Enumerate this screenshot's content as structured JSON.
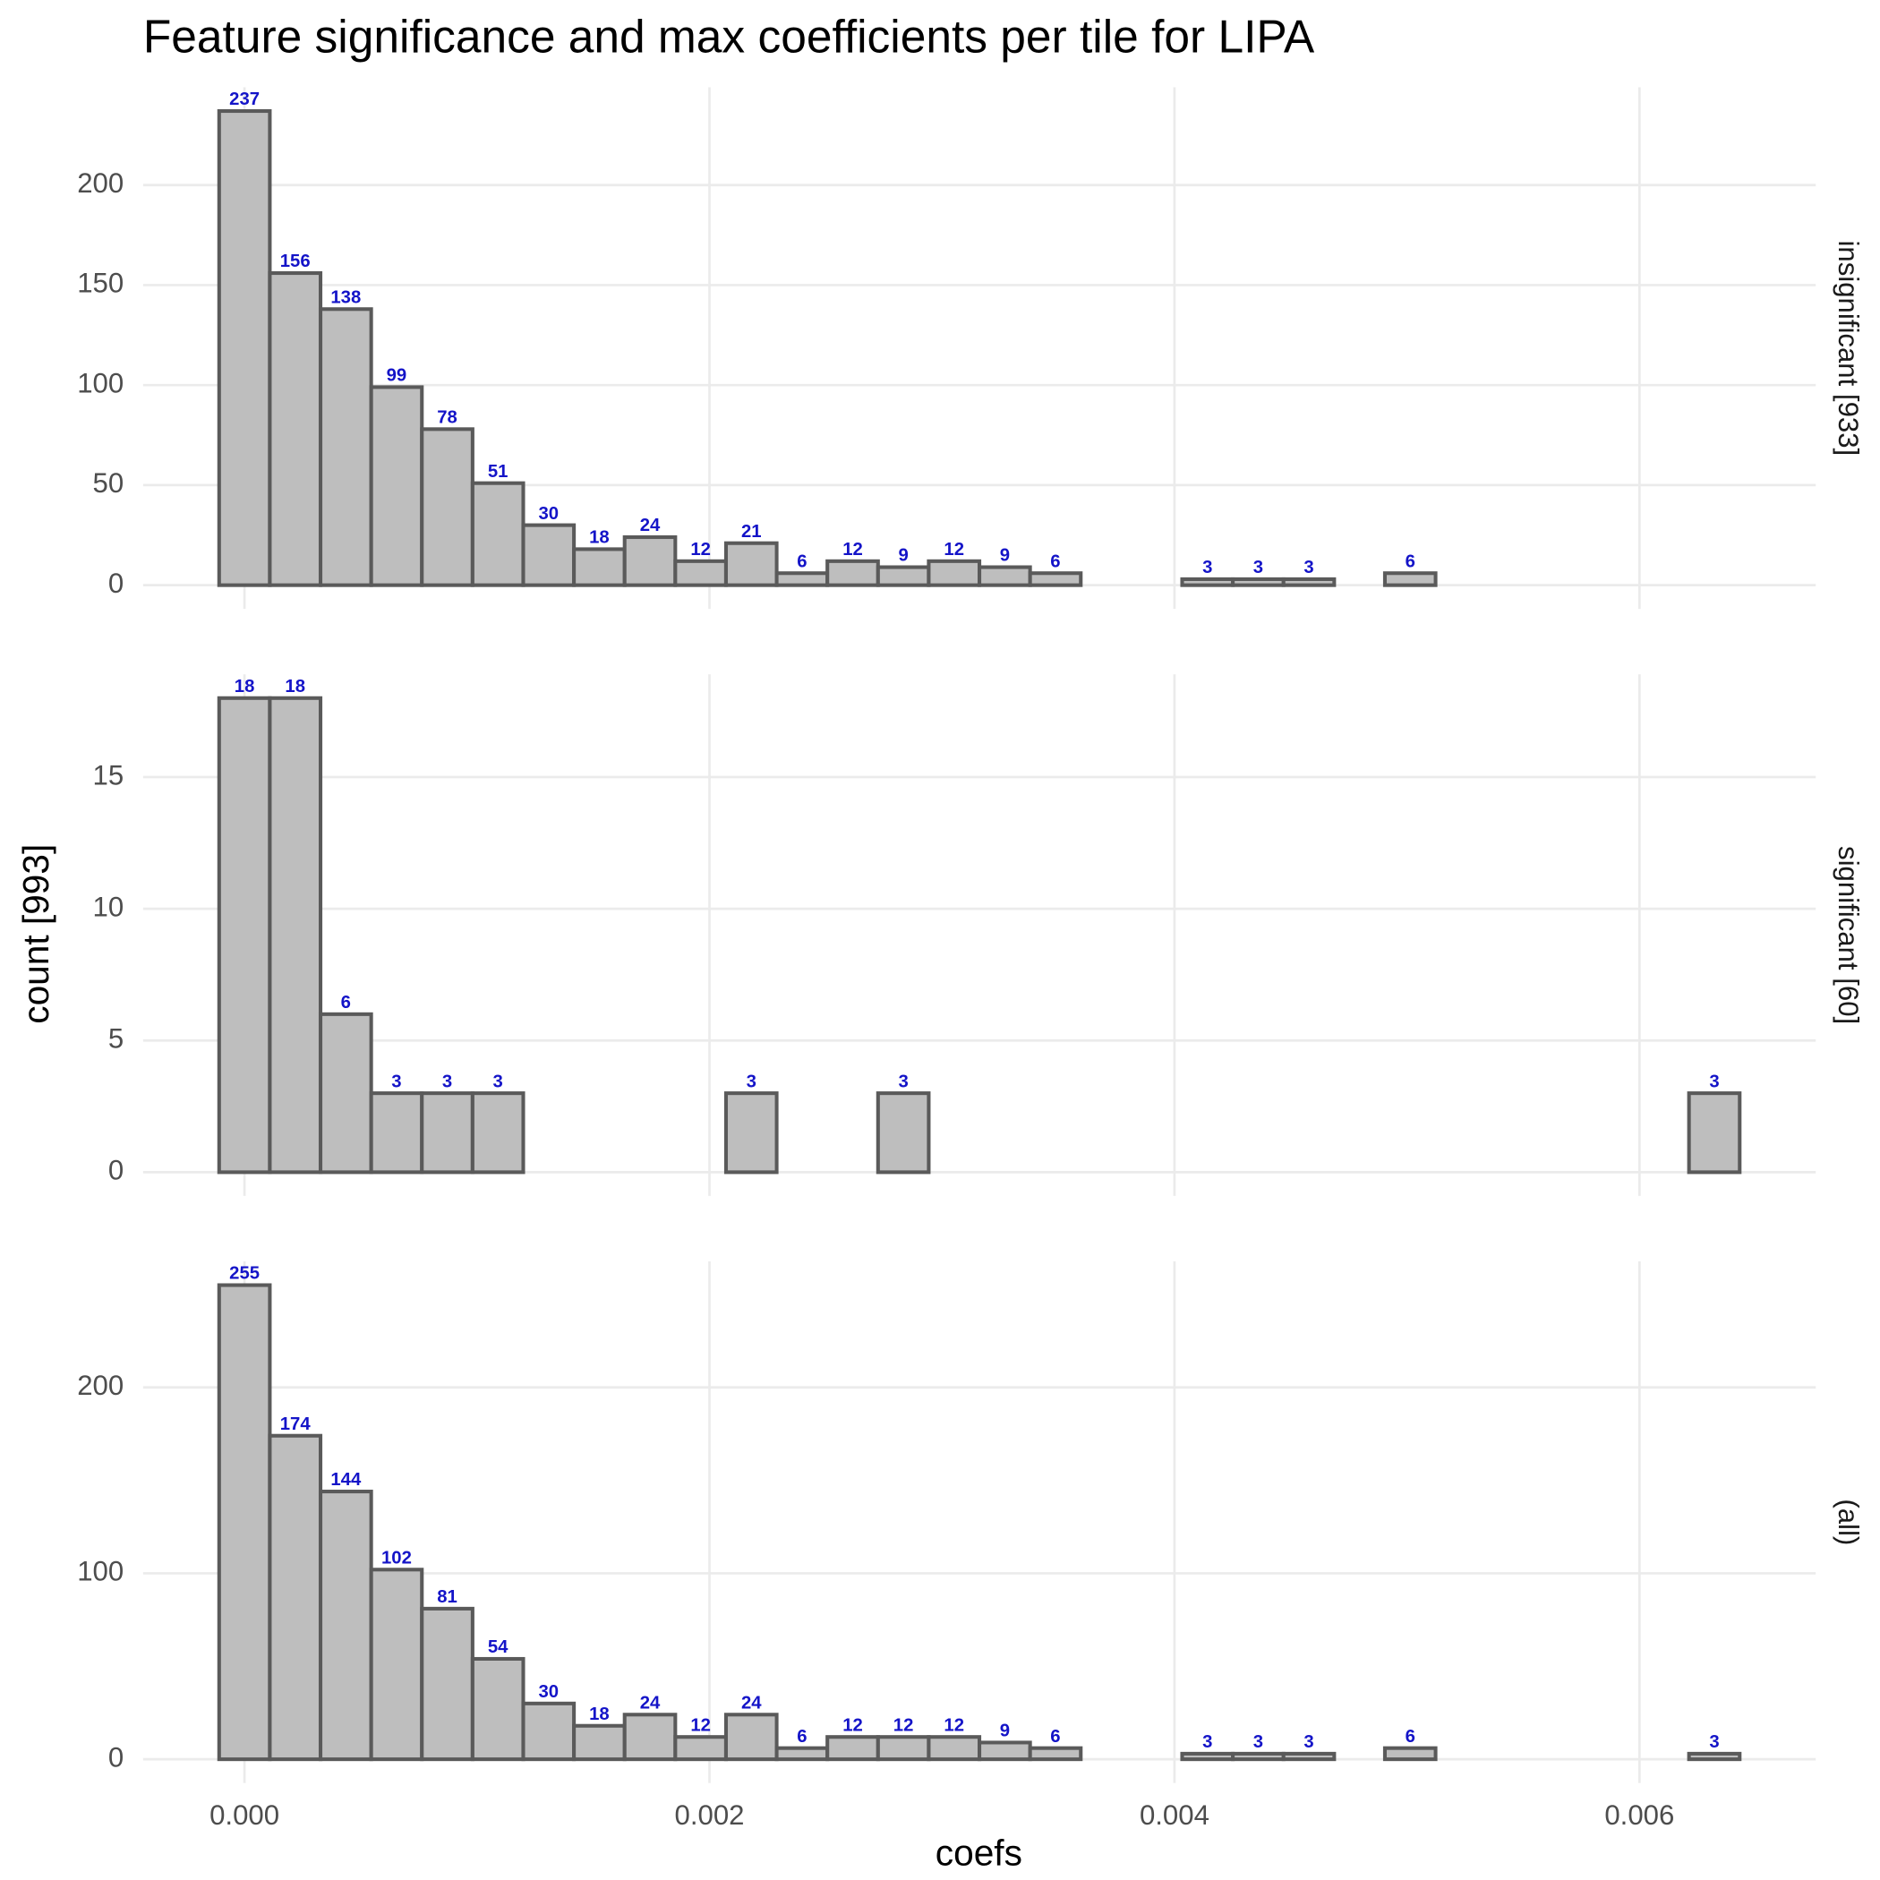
{
  "chart_data": {
    "type": "histogram",
    "title": "Feature significance and max coefficients per tile for LIPA",
    "x_label": "coefs",
    "y_label": "count [993]",
    "bins": [
      -0.000109,
      0.000109,
      0.000327,
      0.000545,
      0.000763,
      0.000981,
      0.001199,
      0.001417,
      0.001635,
      0.001853,
      0.002071,
      0.002289,
      0.002507,
      0.002725,
      0.002943,
      0.003161,
      0.003379,
      0.003597,
      0.003815,
      0.004033,
      0.004251,
      0.004469,
      0.004687,
      0.004905,
      0.005123,
      0.005341,
      0.005559,
      0.005777,
      0.005995,
      0.006213,
      0.006431
    ],
    "xlim": [
      -0.000436,
      0.006758
    ],
    "xticks": [
      {
        "value": 0,
        "label": "0.000"
      },
      {
        "value": 0.002,
        "label": "0.002"
      },
      {
        "value": 0.004,
        "label": "0.004"
      },
      {
        "value": 0.006,
        "label": "0.006"
      }
    ],
    "color": "#bebebe",
    "edge_color": "#5a5a5a",
    "label_color": "#1414c8",
    "grid": true,
    "facets": [
      {
        "label": "insignificant [933]",
        "values": [
          237,
          156,
          138,
          99,
          78,
          51,
          30,
          18,
          24,
          12,
          21,
          6,
          12,
          9,
          12,
          9,
          6,
          0,
          0,
          3,
          3,
          3,
          0,
          6,
          0,
          0,
          0,
          0,
          0,
          0
        ],
        "ylim": [
          -11.85,
          248.85
        ],
        "yticks": [
          0,
          50,
          100,
          150,
          200
        ]
      },
      {
        "label": "significant [60]",
        "values": [
          18,
          18,
          6,
          3,
          3,
          3,
          0,
          0,
          0,
          0,
          3,
          0,
          0,
          3,
          0,
          0,
          0,
          0,
          0,
          0,
          0,
          0,
          0,
          0,
          0,
          0,
          0,
          0,
          0,
          3
        ],
        "ylim": [
          -0.9,
          18.9
        ],
        "yticks": [
          0,
          5,
          10,
          15
        ]
      },
      {
        "label": "(all)",
        "values": [
          255,
          174,
          144,
          102,
          81,
          54,
          30,
          18,
          24,
          12,
          24,
          6,
          12,
          12,
          12,
          9,
          6,
          0,
          0,
          3,
          3,
          3,
          0,
          6,
          0,
          0,
          0,
          0,
          0,
          3
        ],
        "ylim": [
          -12.75,
          267.75
        ],
        "yticks": [
          0,
          100,
          200
        ]
      }
    ]
  }
}
